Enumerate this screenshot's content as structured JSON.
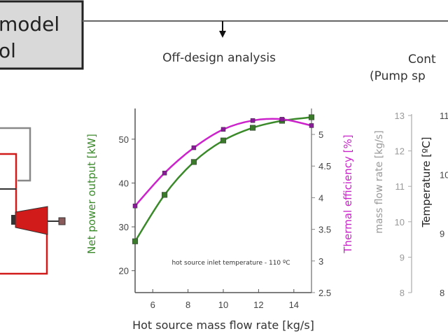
{
  "model_box": {
    "line1": "model",
    "line2": "ol"
  },
  "off_design_title": "Off-design analysis",
  "control_title": {
    "line1": "Cont",
    "line2": "(Pump sp"
  },
  "colors": {
    "power": "#3a8a2a",
    "efficiency": "#cc22cc",
    "cycle_red": "#d11a1a",
    "box_bg": "#d9d9d9"
  },
  "chart_data": {
    "type": "line",
    "title": "Off-design analysis",
    "xlabel": "Hot source mass flow rate [kg/s]",
    "ylabel": "Net power output [kW]",
    "y2label": "Thermal efficiency [%]",
    "annotation": "hot source inlet temperature - 110 ºC",
    "xlim": [
      5,
      15
    ],
    "ylim": [
      15,
      57
    ],
    "y2lim": [
      2.5,
      5.41
    ],
    "xticks": [
      "6",
      "8",
      "10",
      "12",
      "14"
    ],
    "yticks": [
      "20",
      "30",
      "40",
      "50"
    ],
    "y2ticks": [
      "2.5",
      "3",
      "3.5",
      "4",
      "4.5",
      "5"
    ],
    "x": [
      5,
      6.67,
      8.33,
      10,
      11.67,
      13.33,
      15
    ],
    "series": [
      {
        "name": "Net power output",
        "axis": "left",
        "color": "#3a8a2a",
        "values": [
          26.7,
          37.3,
          44.8,
          49.7,
          52.6,
          54.2,
          55.0
        ]
      },
      {
        "name": "Thermal efficiency",
        "axis": "right",
        "color": "#cc22cc",
        "values": [
          3.87,
          4.39,
          4.79,
          5.08,
          5.22,
          5.24,
          5.14
        ]
      }
    ]
  },
  "right_axes": {
    "mass_flow_label": "mass flow rate [kg/s]",
    "mass_flow_ticks": [
      "8",
      "9",
      "10",
      "11",
      "12",
      "13"
    ],
    "temperature_label": "Temperature [ºC]",
    "temperature_ticks": [
      "8",
      "9",
      "10",
      "11"
    ]
  }
}
